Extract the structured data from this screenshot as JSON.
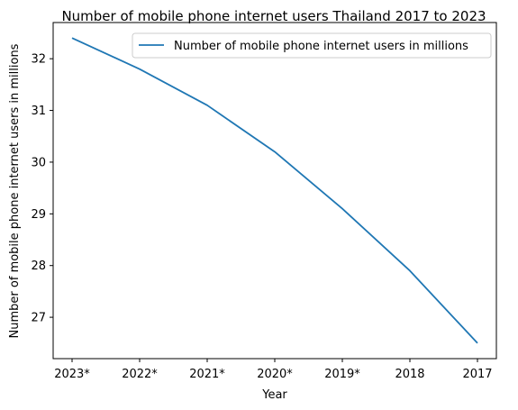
{
  "chart_data": {
    "type": "line",
    "title": "Number of mobile phone internet users Thailand 2017 to 2023",
    "xlabel": "Year",
    "ylabel": "Number of mobile phone internet users in millions",
    "categories": [
      "2023*",
      "2022*",
      "2021*",
      "2020*",
      "2019*",
      "2018",
      "2017"
    ],
    "series": [
      {
        "name": "Number of mobile phone internet users in millions",
        "values": [
          32.4,
          31.8,
          31.1,
          30.2,
          29.1,
          27.9,
          26.5
        ],
        "color": "#1f77b4"
      }
    ],
    "ylim": [
      26.2,
      32.7
    ],
    "yticks": [
      27,
      28,
      29,
      30,
      31,
      32
    ],
    "grid": false,
    "legend_position": "top-right"
  }
}
